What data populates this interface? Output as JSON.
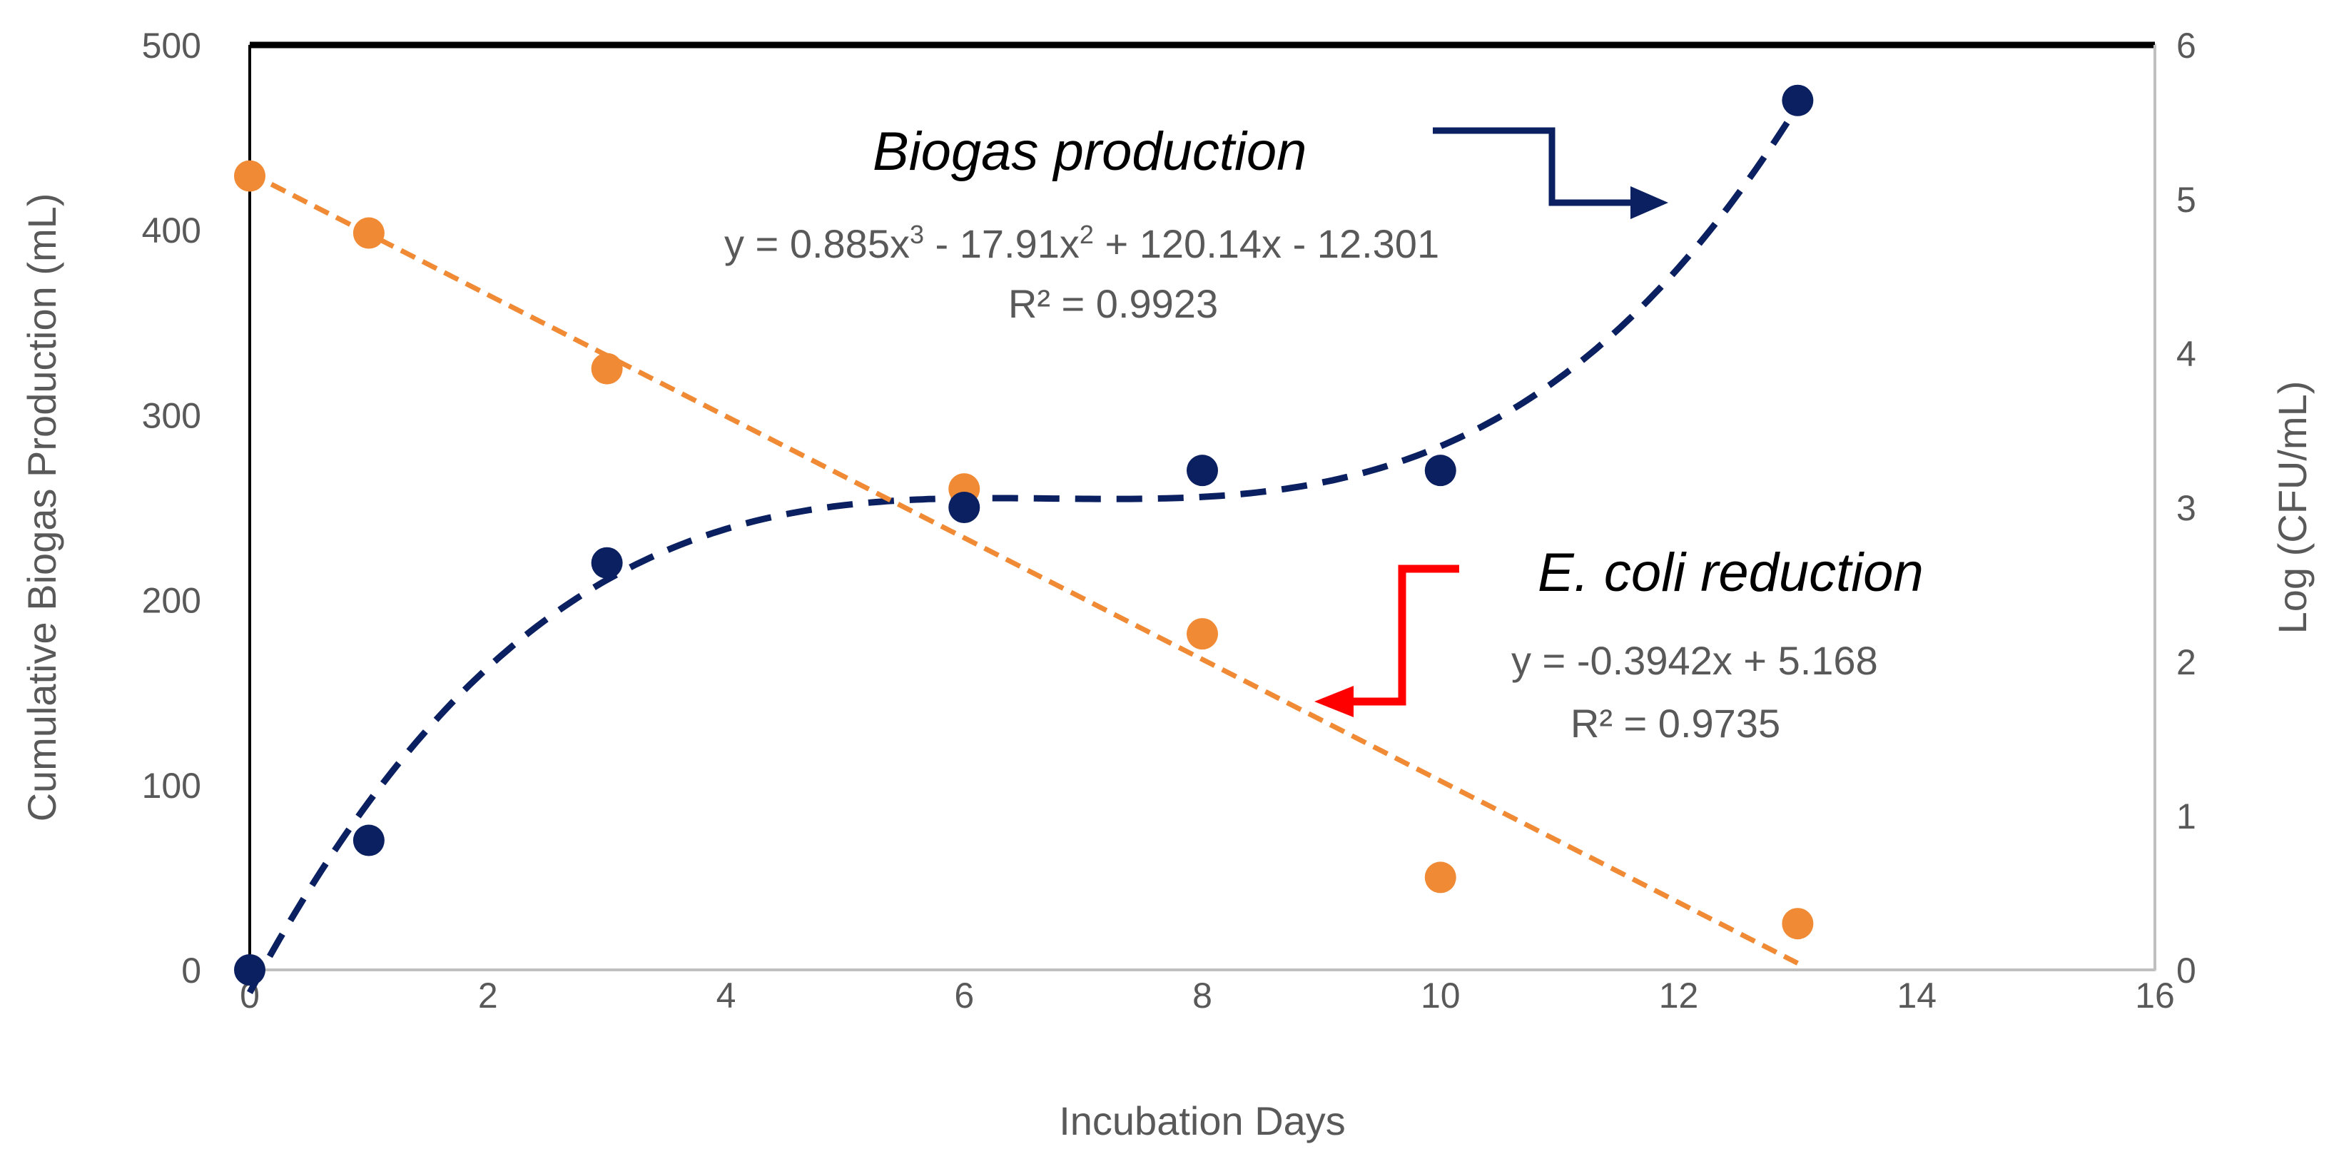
{
  "chart_data": {
    "type": "scatter",
    "title": "",
    "xlabel": "Incubation Days",
    "ylabel": "Cumulative Biogas Production (mL)",
    "y2label": "Log (CFU/mL)",
    "xlim": [
      0,
      16
    ],
    "ylim": [
      0,
      500
    ],
    "y2lim": [
      0,
      6
    ],
    "xticks": [
      "0",
      "2",
      "4",
      "6",
      "8",
      "10",
      "12",
      "14",
      "16"
    ],
    "yticks": [
      "0",
      "100",
      "200",
      "300",
      "400",
      "500"
    ],
    "y2ticks": [
      "0",
      "1",
      "2",
      "3",
      "4",
      "5",
      "6"
    ],
    "grid": false,
    "colors": {
      "biogas": "#0b2060",
      "ecoli": "#f08a35",
      "ecoli_arrow": "#ff0000",
      "text": "#595959",
      "frame": "#000000"
    },
    "series": [
      {
        "name": "Biogas production",
        "axis": "left",
        "x": [
          0,
          1,
          3,
          6,
          8,
          10,
          13
        ],
        "y": [
          0,
          70,
          220,
          250,
          270,
          270,
          470
        ],
        "trendline": {
          "kind": "poly3",
          "coefficients": [
            0.885,
            -17.91,
            120.14,
            -12.301
          ],
          "range": [
            0,
            13
          ],
          "equation_parts": [
            "y = 0.885x",
            "3",
            " - 17.91x",
            "2",
            " + 120.14x - 12.301"
          ],
          "r2": "R² = 0.9923"
        }
      },
      {
        "name": "E. coli reduction",
        "axis": "right",
        "x": [
          0,
          1,
          3,
          6,
          8,
          10,
          13
        ],
        "y": [
          5.15,
          4.78,
          3.9,
          3.12,
          2.18,
          0.6,
          0.3
        ],
        "trendline": {
          "kind": "linear",
          "slope": -0.3942,
          "intercept": 5.168,
          "range": [
            0,
            13
          ],
          "equation": "y = -0.3942x + 5.168",
          "r2": "R² = 0.9735"
        }
      }
    ]
  }
}
